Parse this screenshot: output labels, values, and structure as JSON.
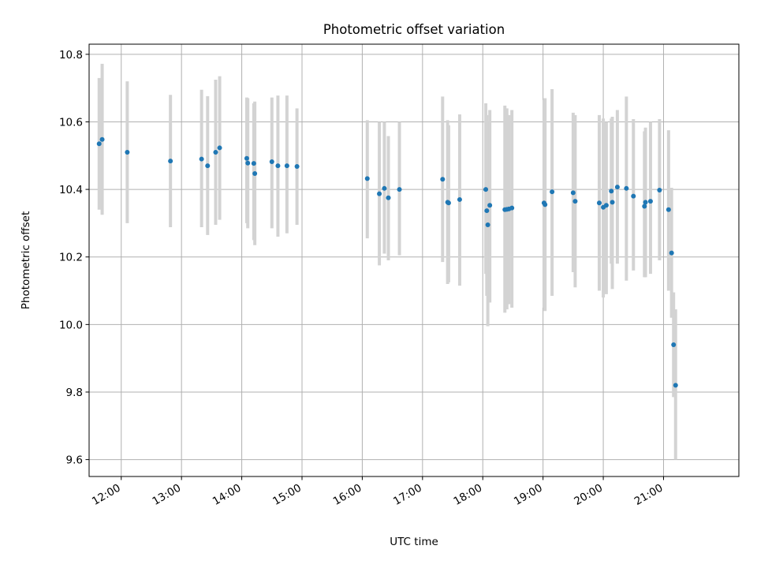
{
  "chart_data": {
    "type": "scatter",
    "title": "Photometric offset variation",
    "xlabel": "UTC time",
    "ylabel": "Photometric offset",
    "grid": true,
    "xlim": [
      "11:28",
      "22:15"
    ],
    "ylim": [
      9.55,
      10.83
    ],
    "x_ticks": [
      "12:00",
      "13:00",
      "14:00",
      "15:00",
      "16:00",
      "17:00",
      "18:00",
      "19:00",
      "20:00",
      "21:00"
    ],
    "y_ticks": [
      "9.6",
      "9.8",
      "10.0",
      "10.2",
      "10.4",
      "10.6",
      "10.8"
    ],
    "colors": {
      "points": "#1f77b4",
      "error_bars": "#d3d3d3"
    },
    "series": [
      {
        "x": [
          "11:38",
          "11:41",
          "12:06",
          "12:49",
          "13:20",
          "13:26",
          "13:34",
          "13:38",
          "14:05",
          "14:06",
          "14:12",
          "14:13",
          "14:30",
          "14:36",
          "14:45",
          "14:55",
          "16:05",
          "16:17",
          "16:22",
          "16:26",
          "16:37",
          "17:20",
          "17:25",
          "17:26",
          "17:37",
          "18:03",
          "18:04",
          "18:05",
          "18:07",
          "18:22",
          "18:24",
          "18:26",
          "18:29",
          "19:01",
          "19:02",
          "19:09",
          "19:30",
          "19:32",
          "19:56",
          "20:00",
          "20:03",
          "20:08",
          "20:09",
          "20:14",
          "20:23",
          "20:30",
          "20:41",
          "20:42",
          "20:47",
          "20:56",
          "21:05",
          "21:08",
          "21:10",
          "21:12"
        ],
        "y": [
          10.535,
          10.548,
          10.51,
          10.484,
          10.49,
          10.47,
          10.51,
          10.523,
          10.492,
          10.478,
          10.477,
          10.447,
          10.482,
          10.47,
          10.47,
          10.468,
          10.432,
          10.387,
          10.403,
          10.375,
          10.4,
          10.43,
          10.362,
          10.36,
          10.37,
          10.4,
          10.337,
          10.295,
          10.353,
          10.34,
          10.341,
          10.342,
          10.345,
          10.36,
          10.355,
          10.393,
          10.39,
          10.365,
          10.36,
          10.347,
          10.353,
          10.395,
          10.362,
          10.407,
          10.403,
          10.38,
          10.35,
          10.362,
          10.365,
          10.398,
          10.34,
          10.212,
          9.94,
          9.82
        ],
        "err_low": [
          10.34,
          10.325,
          10.3,
          10.288,
          10.288,
          10.265,
          10.295,
          10.31,
          10.3,
          10.285,
          10.25,
          10.235,
          10.285,
          10.26,
          10.27,
          10.295,
          10.255,
          10.175,
          10.21,
          10.19,
          10.205,
          10.185,
          10.12,
          10.125,
          10.115,
          10.15,
          10.085,
          9.995,
          10.065,
          10.035,
          10.045,
          10.06,
          10.05,
          10.05,
          10.04,
          10.085,
          10.155,
          10.11,
          10.1,
          10.08,
          10.09,
          10.18,
          10.105,
          10.18,
          10.13,
          10.16,
          10.14,
          10.14,
          10.15,
          10.19,
          10.1,
          10.02,
          9.785,
          9.6
        ],
        "err_high": [
          10.73,
          10.772,
          10.72,
          10.68,
          10.695,
          10.676,
          10.725,
          10.735,
          10.672,
          10.67,
          10.655,
          10.66,
          10.672,
          10.678,
          10.678,
          10.64,
          10.605,
          10.6,
          10.6,
          10.558,
          10.6,
          10.675,
          10.605,
          10.59,
          10.622,
          10.655,
          10.62,
          10.6,
          10.635,
          10.648,
          10.64,
          10.62,
          10.635,
          10.665,
          10.67,
          10.697,
          10.627,
          10.62,
          10.62,
          10.61,
          10.6,
          10.61,
          10.615,
          10.635,
          10.675,
          10.608,
          10.572,
          10.583,
          10.6,
          10.608,
          10.575,
          10.405,
          10.095,
          10.045
        ]
      }
    ]
  }
}
